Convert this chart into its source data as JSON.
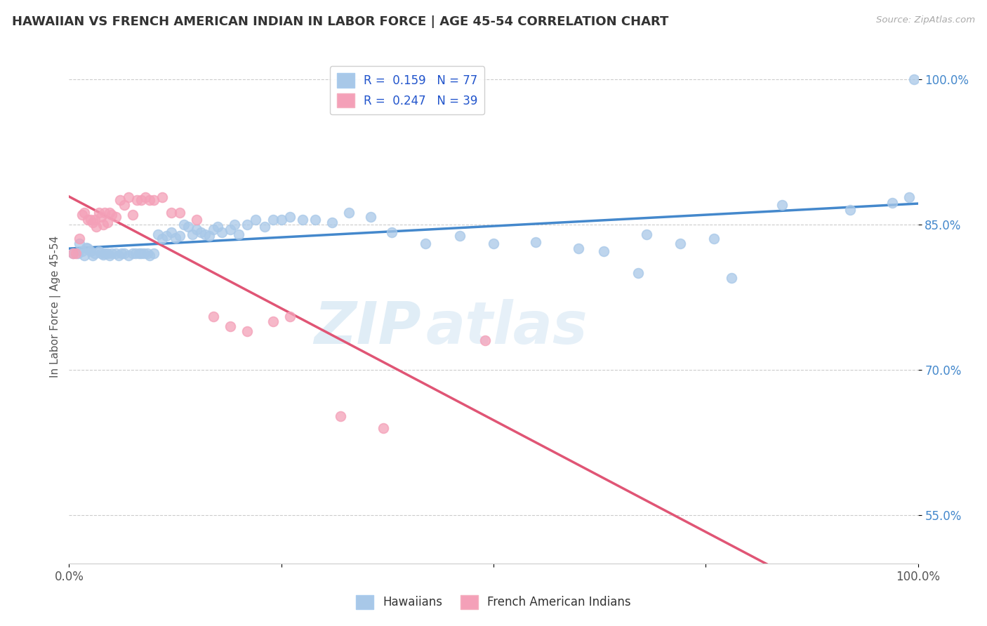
{
  "title": "HAWAIIAN VS FRENCH AMERICAN INDIAN IN LABOR FORCE | AGE 45-54 CORRELATION CHART",
  "source_text": "Source: ZipAtlas.com",
  "ylabel": "In Labor Force | Age 45-54",
  "xlim": [
    0.0,
    1.0
  ],
  "ylim": [
    0.5,
    1.03
  ],
  "x_ticks": [
    0.0,
    0.25,
    0.5,
    0.75,
    1.0
  ],
  "x_tick_labels": [
    "0.0%",
    "",
    "",
    "",
    "100.0%"
  ],
  "y_ticks_right": [
    0.55,
    0.7,
    0.85,
    1.0
  ],
  "y_tick_labels_right": [
    "55.0%",
    "70.0%",
    "85.0%",
    "100.0%"
  ],
  "r_hawaiian": 0.159,
  "n_hawaiian": 77,
  "r_french": 0.247,
  "n_french": 39,
  "hawaiian_color": "#a8c8e8",
  "french_color": "#f4a0b8",
  "trend_hawaiian_color": "#4488cc",
  "trend_french_color": "#e05575",
  "legend_label_hawaiian": "Hawaiians",
  "legend_label_french": "French American Indians",
  "hawaiian_x": [
    0.005,
    0.01,
    0.012,
    0.015,
    0.018,
    0.02,
    0.022,
    0.025,
    0.028,
    0.03,
    0.035,
    0.038,
    0.04,
    0.042,
    0.045,
    0.048,
    0.05,
    0.055,
    0.058,
    0.062,
    0.065,
    0.07,
    0.075,
    0.078,
    0.082,
    0.085,
    0.088,
    0.092,
    0.095,
    0.1,
    0.105,
    0.11,
    0.115,
    0.12,
    0.125,
    0.13,
    0.135,
    0.14,
    0.145,
    0.15,
    0.155,
    0.16,
    0.165,
    0.17,
    0.175,
    0.18,
    0.19,
    0.195,
    0.2,
    0.21,
    0.22,
    0.23,
    0.24,
    0.25,
    0.26,
    0.275,
    0.29,
    0.31,
    0.33,
    0.355,
    0.38,
    0.42,
    0.46,
    0.5,
    0.55,
    0.6,
    0.63,
    0.68,
    0.72,
    0.76,
    0.84,
    0.92,
    0.97,
    0.99,
    0.995,
    0.67,
    0.78
  ],
  "hawaiian_y": [
    0.82,
    0.82,
    0.83,
    0.822,
    0.818,
    0.826,
    0.825,
    0.822,
    0.818,
    0.82,
    0.822,
    0.82,
    0.819,
    0.82,
    0.82,
    0.818,
    0.82,
    0.82,
    0.818,
    0.82,
    0.82,
    0.818,
    0.82,
    0.82,
    0.82,
    0.82,
    0.82,
    0.82,
    0.818,
    0.82,
    0.84,
    0.835,
    0.838,
    0.842,
    0.836,
    0.838,
    0.85,
    0.848,
    0.84,
    0.845,
    0.842,
    0.84,
    0.838,
    0.845,
    0.848,
    0.842,
    0.845,
    0.85,
    0.84,
    0.85,
    0.855,
    0.848,
    0.855,
    0.855,
    0.858,
    0.855,
    0.855,
    0.852,
    0.862,
    0.858,
    0.842,
    0.83,
    0.838,
    0.83,
    0.832,
    0.825,
    0.822,
    0.84,
    0.83,
    0.835,
    0.87,
    0.865,
    0.872,
    0.878,
    1.0,
    0.8,
    0.795
  ],
  "french_x": [
    0.005,
    0.008,
    0.012,
    0.015,
    0.018,
    0.022,
    0.025,
    0.028,
    0.03,
    0.032,
    0.035,
    0.038,
    0.04,
    0.042,
    0.045,
    0.048,
    0.05,
    0.055,
    0.06,
    0.065,
    0.07,
    0.075,
    0.08,
    0.085,
    0.09,
    0.095,
    0.1,
    0.11,
    0.12,
    0.13,
    0.15,
    0.17,
    0.19,
    0.21,
    0.24,
    0.26,
    0.32,
    0.37,
    0.49
  ],
  "french_y": [
    0.82,
    0.82,
    0.835,
    0.86,
    0.862,
    0.855,
    0.855,
    0.852,
    0.855,
    0.848,
    0.862,
    0.858,
    0.85,
    0.862,
    0.852,
    0.862,
    0.86,
    0.858,
    0.875,
    0.87,
    0.878,
    0.86,
    0.875,
    0.875,
    0.878,
    0.875,
    0.875,
    0.878,
    0.862,
    0.862,
    0.855,
    0.755,
    0.745,
    0.74,
    0.75,
    0.755,
    0.652,
    0.64,
    0.73
  ]
}
